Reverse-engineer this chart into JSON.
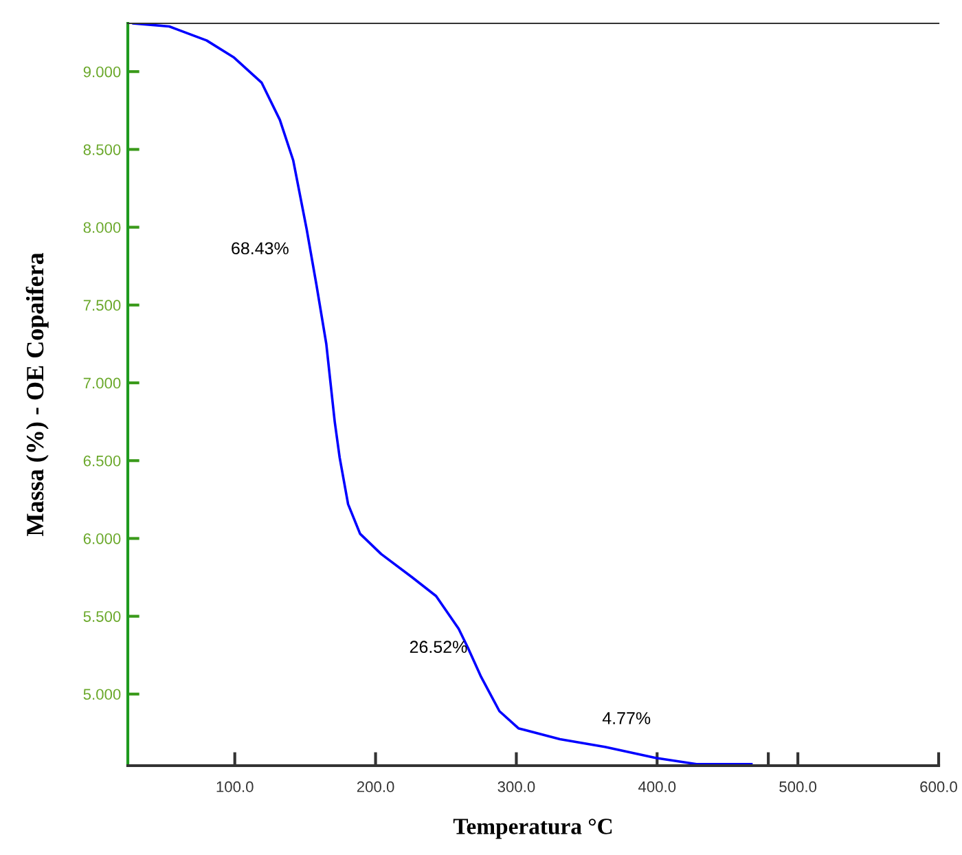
{
  "chart_data": {
    "type": "line",
    "xlabel": "Temperatura °C",
    "ylabel": "Massa (%) - OE Copaifera",
    "xlim": [
      24,
      600
    ],
    "ylim": [
      4.54,
      9.31
    ],
    "xticks": [
      {
        "value": 100,
        "label": "100.0"
      },
      {
        "value": 200,
        "label": "200.0"
      },
      {
        "value": 300,
        "label": "300.0"
      },
      {
        "value": 400,
        "label": "400.0"
      },
      {
        "value": 479,
        "label": null
      },
      {
        "value": 500,
        "label": "500.0"
      },
      {
        "value": 600,
        "label": "600.0"
      }
    ],
    "yticks": [
      {
        "value": 5,
        "label": "5.000"
      },
      {
        "value": 5.5,
        "label": "5.500"
      },
      {
        "value": 6,
        "label": "6.000"
      },
      {
        "value": 6.5,
        "label": "6.500"
      },
      {
        "value": 7,
        "label": "7.000"
      },
      {
        "value": 7.5,
        "label": "7.500"
      },
      {
        "value": 8,
        "label": "8.000"
      },
      {
        "value": 8.5,
        "label": "8.500"
      },
      {
        "value": 9,
        "label": "9.000"
      }
    ],
    "grid": false,
    "legend": false,
    "marker": "none",
    "line_style": "solid",
    "annotations": [
      "68.43%",
      "26.52%",
      "4.77%"
    ],
    "series": [
      {
        "color": "#0000ff",
        "x": [
          28,
          53.5,
          80,
          99.5,
          119,
          132,
          141.5,
          151,
          158,
          165,
          171,
          174.5,
          180.5,
          189,
          204,
          226,
          243,
          259,
          265.5,
          275,
          288,
          301.5,
          331,
          363,
          399,
          428,
          467
        ],
        "values": [
          9.31,
          9.29,
          9.2,
          9.09,
          8.93,
          8.69,
          8.43,
          7.99,
          7.63,
          7.25,
          6.75,
          6.52,
          6.22,
          6.03,
          5.9,
          5.75,
          5.63,
          5.42,
          5.3,
          5.11,
          4.89,
          4.78,
          4.71,
          4.66,
          4.59,
          4.55,
          4.55
        ]
      }
    ]
  }
}
